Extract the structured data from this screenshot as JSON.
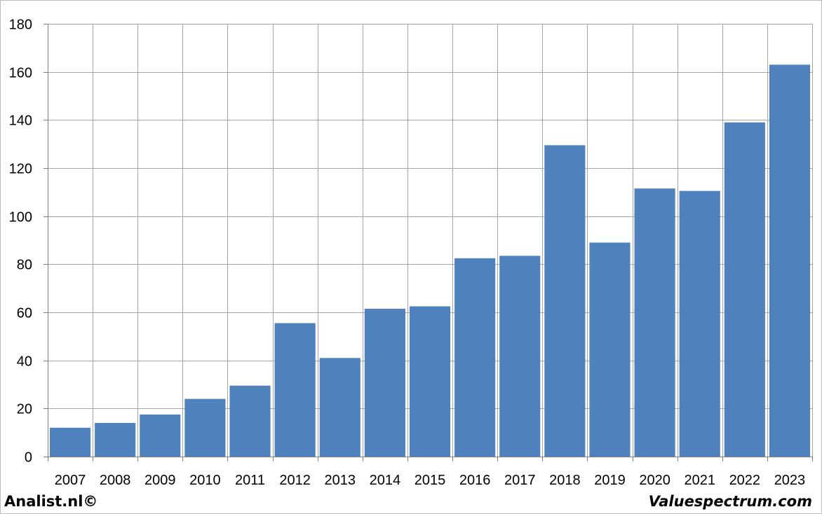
{
  "chart_data": {
    "type": "bar",
    "categories": [
      "2007",
      "2008",
      "2009",
      "2010",
      "2011",
      "2012",
      "2013",
      "2014",
      "2015",
      "2016",
      "2017",
      "2018",
      "2019",
      "2020",
      "2021",
      "2022",
      "2023"
    ],
    "values": [
      12,
      14,
      17.5,
      24,
      29.5,
      55.5,
      41,
      61.5,
      62.5,
      82.5,
      83.5,
      129.5,
      89,
      111.5,
      110.5,
      139,
      163
    ],
    "ylim": [
      0,
      180
    ],
    "yticks": [
      0,
      20,
      40,
      60,
      80,
      100,
      120,
      140,
      160,
      180
    ],
    "grid": true,
    "bar_color": "#4f81bd",
    "grid_color": "#a6a6a6"
  },
  "footer": {
    "left": "Analist.nl©",
    "right": "Valuespectrum.com"
  }
}
